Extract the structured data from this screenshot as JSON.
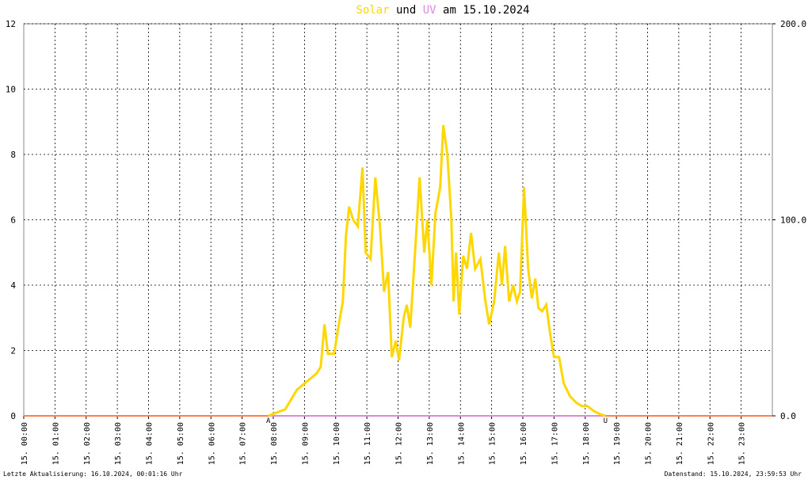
{
  "chart_data": {
    "type": "line",
    "title_connector": "und",
    "title_suffix": "am 15.10.2024",
    "xlim": [
      0,
      24
    ],
    "xticks": [
      {
        "value": 0,
        "label": "15. 00:00"
      },
      {
        "value": 1,
        "label": "15. 01:00"
      },
      {
        "value": 2,
        "label": "15. 02:00"
      },
      {
        "value": 3,
        "label": "15. 03:00"
      },
      {
        "value": 4,
        "label": "15. 04:00"
      },
      {
        "value": 5,
        "label": "15. 05:00"
      },
      {
        "value": 6,
        "label": "15. 06:00"
      },
      {
        "value": 7,
        "label": "15. 07:00"
      },
      {
        "value": 8,
        "label": "15. 08:00"
      },
      {
        "value": 9,
        "label": "15. 09:00"
      },
      {
        "value": 10,
        "label": "15. 10:00"
      },
      {
        "value": 11,
        "label": "15. 11:00"
      },
      {
        "value": 12,
        "label": "15. 12:00"
      },
      {
        "value": 13,
        "label": "15. 13:00"
      },
      {
        "value": 14,
        "label": "15. 14:00"
      },
      {
        "value": 15,
        "label": "15. 15:00"
      },
      {
        "value": 16,
        "label": "15. 16:00"
      },
      {
        "value": 17,
        "label": "15. 17:00"
      },
      {
        "value": 18,
        "label": "15. 18:00"
      },
      {
        "value": 19,
        "label": "15. 19:00"
      },
      {
        "value": 20,
        "label": "15. 20:00"
      },
      {
        "value": 21,
        "label": "15. 21:00"
      },
      {
        "value": 22,
        "label": "15. 22:00"
      },
      {
        "value": 23,
        "label": "15. 23:00"
      }
    ],
    "ylim": [
      0,
      12
    ],
    "yticks": [
      0,
      2,
      4,
      6,
      8,
      10,
      12
    ],
    "y2lim": [
      0,
      200
    ],
    "y2ticks": [
      {
        "value": 0,
        "label": "0.0"
      },
      {
        "value": 100,
        "label": "100.0"
      },
      {
        "value": 200,
        "label": "200.0"
      }
    ],
    "grid": true,
    "series": [
      {
        "name": "Solar",
        "color": "#ffd700",
        "x": [
          7.84,
          8.38,
          8.76,
          9.14,
          9.39,
          9.52,
          9.64,
          9.75,
          9.95,
          10.1,
          10.23,
          10.33,
          10.43,
          10.56,
          10.71,
          10.86,
          10.96,
          11.12,
          11.27,
          11.42,
          11.55,
          11.68,
          11.8,
          11.93,
          12.03,
          12.18,
          12.28,
          12.39,
          12.49,
          12.59,
          12.69,
          12.84,
          12.94,
          13.07,
          13.2,
          13.35,
          13.45,
          13.58,
          13.71,
          13.78,
          13.86,
          13.96,
          14.09,
          14.21,
          14.34,
          14.47,
          14.64,
          14.8,
          14.92,
          15.08,
          15.23,
          15.33,
          15.43,
          15.56,
          15.69,
          15.81,
          15.91,
          16.04,
          16.17,
          16.29,
          16.4,
          16.5,
          16.62,
          16.75,
          16.88,
          17.0,
          17.16,
          17.31,
          17.51,
          17.72,
          17.89,
          18.07,
          18.27,
          18.48,
          18.65
        ],
        "values": [
          0,
          0.2,
          0.8,
          1.1,
          1.3,
          1.5,
          2.8,
          1.9,
          1.9,
          2.8,
          3.5,
          5.5,
          6.4,
          6.0,
          5.8,
          7.6,
          5.0,
          4.8,
          7.3,
          5.8,
          3.8,
          4.4,
          1.8,
          2.3,
          1.7,
          3.0,
          3.4,
          2.7,
          4.2,
          5.7,
          7.3,
          5.0,
          6.0,
          4.0,
          6.2,
          7.0,
          8.9,
          8.0,
          6.0,
          3.5,
          5.0,
          3.1,
          4.9,
          4.5,
          5.6,
          4.5,
          4.8,
          3.5,
          2.8,
          3.5,
          5.0,
          4.0,
          5.2,
          3.5,
          4.0,
          3.5,
          3.8,
          7.0,
          4.5,
          3.6,
          4.2,
          3.3,
          3.2,
          3.4,
          2.5,
          1.8,
          1.8,
          1.0,
          0.6,
          0.4,
          0.3,
          0.3,
          0.15,
          0.05,
          0
        ]
      },
      {
        "name": "UV",
        "color": "#dd88dd",
        "axis": "y2",
        "x": [
          7.84,
          18.65
        ],
        "values": [
          0,
          0
        ]
      }
    ],
    "annotations": [
      {
        "text": "A",
        "x": 7.84,
        "color": "#cc0000"
      },
      {
        "text": "U",
        "x": 18.65,
        "color": "#cc0000"
      }
    ],
    "footer_left": "Letzte Aktualisierung: 16.10.2024, 00:01:16 Uhr",
    "footer_right": "Datenstand: 15.10.2024, 23:59:53 Uhr"
  }
}
